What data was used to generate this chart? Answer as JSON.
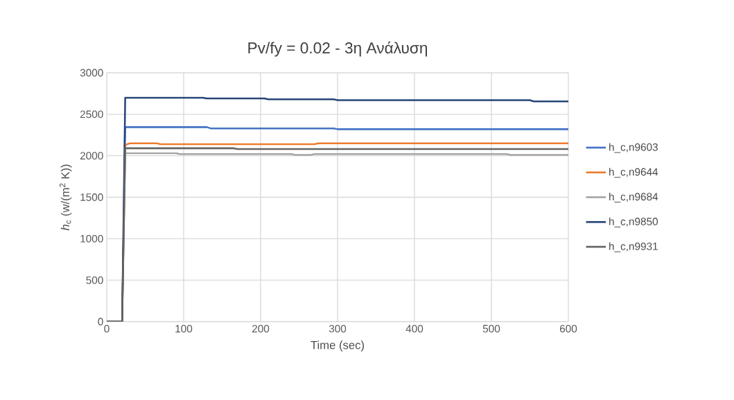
{
  "chart_data": {
    "type": "line",
    "title": "Pv/fy = 0.02 - 3η Ανάλυση",
    "xlabel": "Time (sec)",
    "ylabel": "*h*$_{c}$ (w/(m$^{2}$ K))",
    "xlim": [
      0,
      600
    ],
    "ylim": [
      0,
      3000
    ],
    "xticks": [
      0,
      100,
      200,
      300,
      400,
      500,
      600
    ],
    "yticks": [
      0,
      500,
      1000,
      1500,
      2000,
      2500,
      3000
    ],
    "grid": true,
    "legend": "right",
    "marker": "none",
    "line_style": "solid",
    "series": [
      {
        "name": "h_c,n9603",
        "color": "#4472c4",
        "x": [
          0,
          20,
          24,
          130,
          135,
          295,
          300,
          600
        ],
        "values": [
          0,
          0,
          2345,
          2345,
          2330,
          2330,
          2320,
          2320
        ]
      },
      {
        "name": "h_c,n9644",
        "color": "#ed7d31",
        "x": [
          0,
          20,
          24,
          30,
          65,
          70,
          270,
          275,
          600
        ],
        "values": [
          0,
          0,
          2130,
          2150,
          2150,
          2140,
          2140,
          2150,
          2150
        ]
      },
      {
        "name": "h_c,n9684",
        "color": "#a5a5a5",
        "x": [
          0,
          20,
          24,
          90,
          95,
          240,
          245,
          265,
          270,
          520,
          525,
          600
        ],
        "values": [
          0,
          0,
          2030,
          2030,
          2020,
          2020,
          2010,
          2010,
          2020,
          2020,
          2010,
          2010
        ]
      },
      {
        "name": "h_c,n9850",
        "color": "#264478",
        "x": [
          0,
          20,
          24,
          125,
          130,
          205,
          210,
          295,
          300,
          550,
          555,
          600
        ],
        "values": [
          0,
          0,
          2700,
          2700,
          2690,
          2690,
          2680,
          2680,
          2670,
          2670,
          2655,
          2655
        ]
      },
      {
        "name": "h_c,n9931",
        "color": "#636363",
        "x": [
          0,
          20,
          24,
          165,
          170,
          600
        ],
        "values": [
          0,
          0,
          2090,
          2090,
          2080,
          2080
        ]
      }
    ]
  }
}
